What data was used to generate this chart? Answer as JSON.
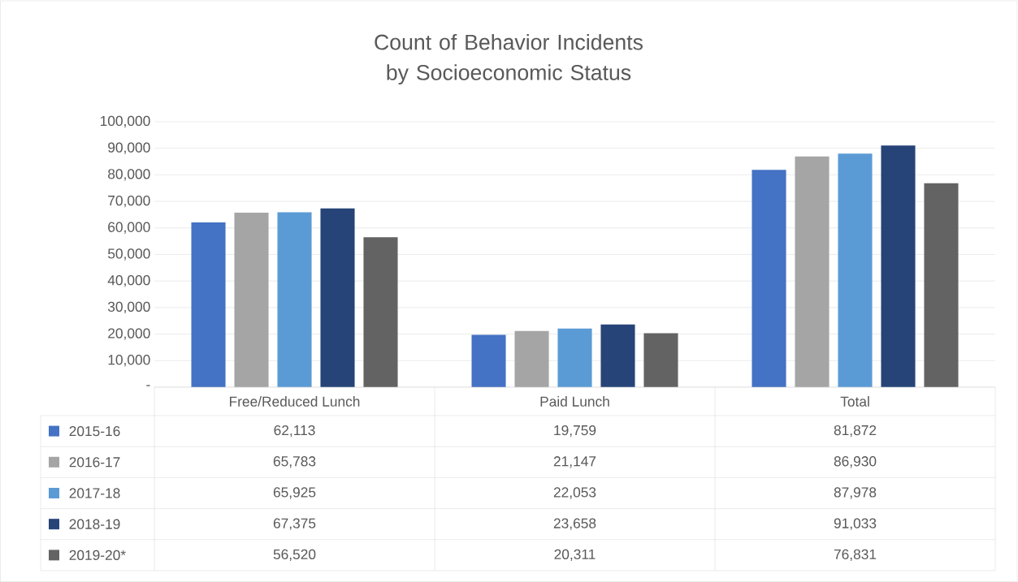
{
  "chart_data": {
    "type": "bar",
    "title": "Count of Behavior Incidents by Socioeconomic Status",
    "categories": [
      "Free/Reduced Lunch",
      "Paid Lunch",
      "Total"
    ],
    "series": [
      {
        "name": "2015-16",
        "color": "#4472c4",
        "values": [
          62113,
          19759,
          81872
        ],
        "value_labels": [
          "62,113",
          "19,759",
          "81,872"
        ]
      },
      {
        "name": "2016-17",
        "color": "#a5a5a5",
        "values": [
          65783,
          21147,
          86930
        ],
        "value_labels": [
          "65,783",
          "21,147",
          "86,930"
        ]
      },
      {
        "name": "2017-18",
        "color": "#5b9bd5",
        "values": [
          65925,
          22053,
          87978
        ],
        "value_labels": [
          "65,925",
          "22,053",
          "87,978"
        ]
      },
      {
        "name": "2018-19",
        "color": "#264478",
        "values": [
          67375,
          23658,
          91033
        ],
        "value_labels": [
          "67,375",
          "23,658",
          "91,033"
        ]
      },
      {
        "name": "2019-20*",
        "color": "#636363",
        "values": [
          56520,
          20311,
          76831
        ],
        "value_labels": [
          "56,520",
          "20,311",
          "76,831"
        ]
      }
    ],
    "ylim": [
      0,
      100000
    ],
    "yticks": [
      {
        "value": 0,
        "label": "-"
      },
      {
        "value": 10000,
        "label": "10,000"
      },
      {
        "value": 20000,
        "label": "20,000"
      },
      {
        "value": 30000,
        "label": "30,000"
      },
      {
        "value": 40000,
        "label": "40,000"
      },
      {
        "value": 50000,
        "label": "50,000"
      },
      {
        "value": 60000,
        "label": "60,000"
      },
      {
        "value": 70000,
        "label": "70,000"
      },
      {
        "value": 80000,
        "label": "80,000"
      },
      {
        "value": 90000,
        "label": "90,000"
      },
      {
        "value": 100000,
        "label": "100,000"
      }
    ],
    "grid": "y",
    "legend": "bottom"
  }
}
